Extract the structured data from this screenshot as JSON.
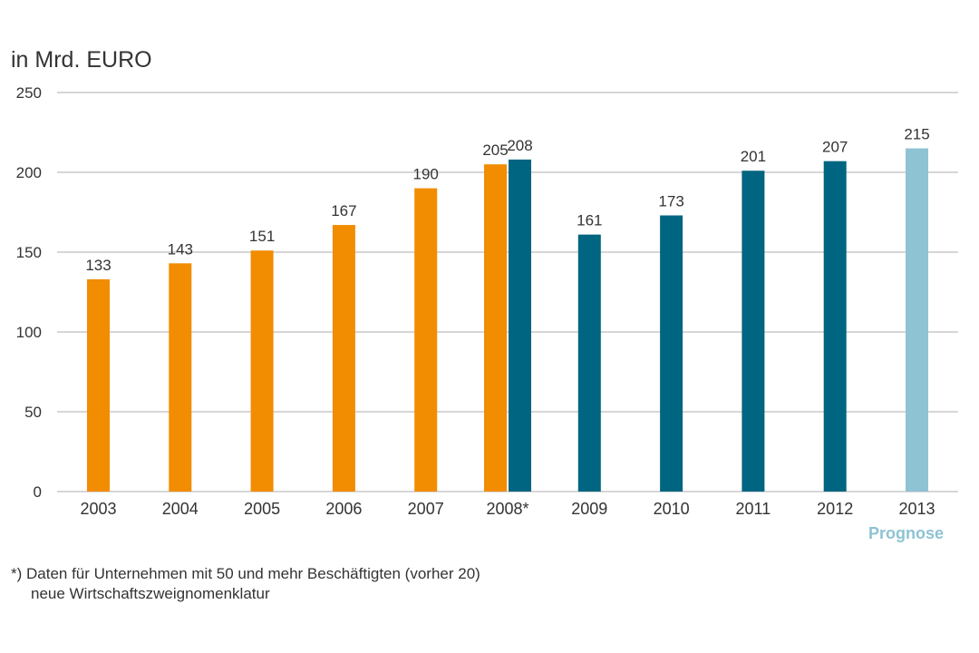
{
  "unit_title": "in Mrd. EURO",
  "prognose_label": "Prognose",
  "footnote": {
    "line1": "*) Daten für Unternehmen mit 50 und mehr Beschäftigten (vorher 20)",
    "line2": "neue Wirtschaftszweignomenklatur"
  },
  "colors": {
    "old_series": "#f28c00",
    "new_series": "#006580",
    "forecast": "#8ec3d3",
    "grid": "#c8c8c8"
  },
  "chart_data": {
    "type": "bar",
    "title": "",
    "ylabel": "in Mrd. EURO",
    "xlabel": "",
    "ylim": [
      0,
      250
    ],
    "yticks": [
      0,
      50,
      100,
      150,
      200,
      250
    ],
    "grid": true,
    "categories": [
      "2003",
      "2004",
      "2005",
      "2006",
      "2007",
      "2008*",
      "2009",
      "2010",
      "2011",
      "2012",
      "2013"
    ],
    "series": [
      {
        "style": "old",
        "values": [
          133,
          143,
          151,
          167,
          190,
          205,
          null,
          null,
          null,
          null,
          null
        ]
      },
      {
        "style": "new",
        "values": [
          null,
          null,
          null,
          null,
          null,
          208,
          161,
          173,
          201,
          207,
          null
        ]
      },
      {
        "style": "forecast",
        "values": [
          null,
          null,
          null,
          null,
          null,
          null,
          null,
          null,
          null,
          null,
          215
        ]
      }
    ]
  }
}
